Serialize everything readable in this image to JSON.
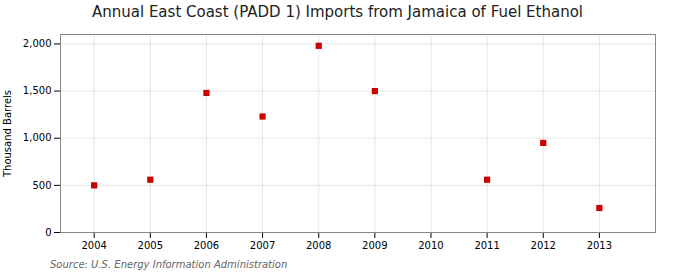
{
  "chart_data": {
    "type": "scatter",
    "title": "Annual East Coast (PADD 1) Imports from Jamaica of Fuel Ethanol",
    "ylabel": "Thousand Barrels",
    "source": "Source: U.S. Energy Information Administration",
    "x": [
      2004,
      2005,
      2006,
      2007,
      2008,
      2009,
      2011,
      2012,
      2013
    ],
    "values": [
      500,
      560,
      1480,
      1230,
      1980,
      1500,
      560,
      950,
      260
    ],
    "color": "#cc0000",
    "marker": "square",
    "xlim": [
      2003.4,
      2014.0
    ],
    "xticks": [
      2004,
      2005,
      2006,
      2007,
      2008,
      2009,
      2010,
      2011,
      2012,
      2013
    ],
    "ylim": [
      0,
      2100
    ],
    "yticks": [
      0,
      500,
      {
        "value": 1000,
        "label": "1,000"
      },
      {
        "value": 1500,
        "label": "1,500"
      },
      {
        "value": 2000,
        "label": "2,000"
      }
    ],
    "grid": true
  }
}
